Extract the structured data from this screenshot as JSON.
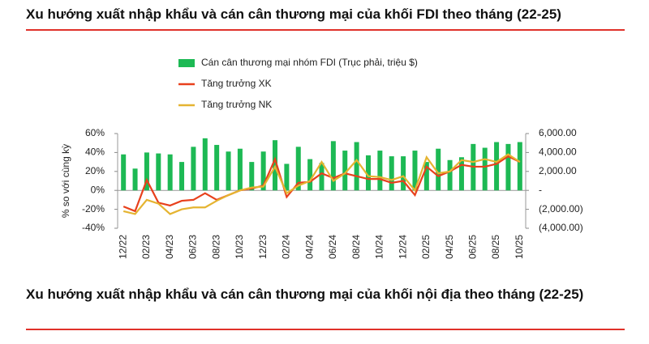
{
  "chart_data": {
    "type": "combo",
    "title": "Xu hướng xuất nhập khẩu và cán cân thương mại của khối FDI theo tháng (22-25)",
    "ylabel": "% so với cùng kỳ",
    "categories": [
      "12/22",
      null,
      "02/23",
      null,
      "04/23",
      null,
      "06/23",
      null,
      "08/23",
      null,
      "10/23",
      null,
      "12/23",
      null,
      "02/24",
      null,
      "04/24",
      null,
      "06/24",
      null,
      "08/24",
      null,
      "10/24",
      null,
      "12/24",
      null,
      "02/25",
      null,
      "04/25",
      null,
      "06/25",
      null,
      "08/25",
      null,
      "10/25"
    ],
    "series": [
      {
        "name": "Cán cân thương mại nhóm FDI (Trục phải, triệu $)",
        "type": "bar",
        "axis": "y2",
        "color": "#1db954",
        "values": [
          3800,
          2300,
          4000,
          3900,
          3800,
          3000,
          4600,
          5500,
          4800,
          4100,
          4400,
          3000,
          4100,
          5300,
          2800,
          4600,
          3300,
          2900,
          5200,
          4200,
          5100,
          3700,
          4200,
          3600,
          3600,
          4200,
          3000,
          4400,
          3200,
          3500,
          4900,
          4500,
          5100,
          4900,
          5100
        ]
      },
      {
        "name": "Tăng trưởng XK",
        "type": "line",
        "color": "#e8401c",
        "values": [
          -17,
          -22,
          11,
          -13,
          -16,
          -11,
          -10,
          -3,
          -10,
          -5,
          0,
          2,
          5,
          33,
          -7,
          8,
          9,
          18,
          13,
          18,
          15,
          12,
          12,
          8,
          10,
          -5,
          25,
          15,
          20,
          27,
          25,
          25,
          28,
          36,
          30
        ]
      },
      {
        "name": "Tăng trưởng NK",
        "type": "line",
        "color": "#e5b431",
        "values": [
          -22,
          -25,
          -10,
          -14,
          -25,
          -20,
          -18,
          -18,
          -11,
          -5,
          0,
          3,
          4,
          25,
          -3,
          5,
          10,
          30,
          10,
          18,
          32,
          15,
          14,
          11,
          15,
          0,
          35,
          18,
          20,
          32,
          30,
          33,
          30,
          38,
          30
        ]
      }
    ],
    "ylim": [
      -40,
      60
    ],
    "yticks": [
      {
        "value": -40,
        "label": "-40%"
      },
      {
        "value": -20,
        "label": "-20%"
      },
      {
        "value": 0,
        "label": "0%"
      },
      {
        "value": 20,
        "label": "20%"
      },
      {
        "value": 40,
        "label": "40%"
      },
      {
        "value": 60,
        "label": "60%"
      }
    ],
    "y2lim": [
      -4000,
      6000
    ],
    "y2ticks": [
      {
        "value": -4000,
        "label": "(4,000.00)"
      },
      {
        "value": -2000,
        "label": "(2,000.00)"
      },
      {
        "value": 0,
        "label": "-"
      },
      {
        "value": 2000,
        "label": "2,000.00"
      },
      {
        "value": 4000,
        "label": "4,000.00"
      },
      {
        "value": 6000,
        "label": "6,000.00"
      }
    ]
  },
  "next_section": {
    "title": "Xu hướng xuất nhập khẩu và cán cân thương mại của khối nội địa theo tháng (22-25)"
  }
}
